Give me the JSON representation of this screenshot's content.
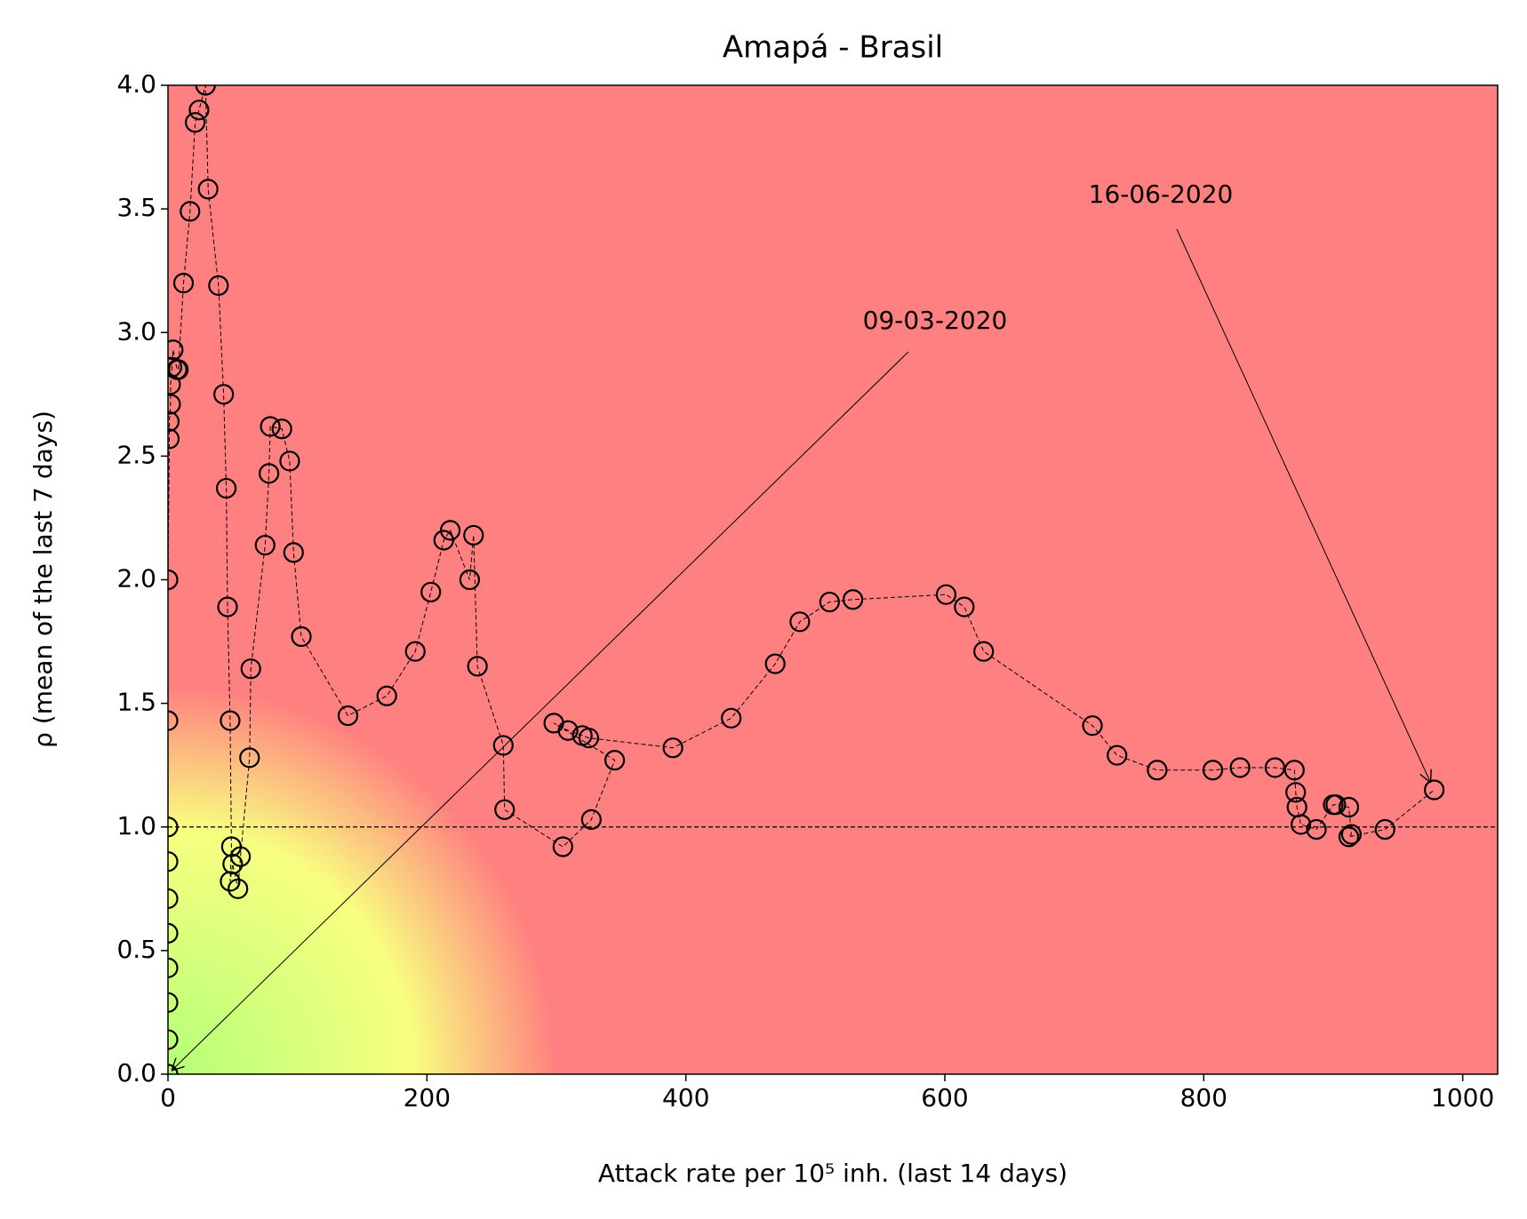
{
  "chart_data": {
    "type": "line",
    "title": "Amapá - Brasil",
    "x_label": "Attack rate per 10⁵ inh. (last 14 days)",
    "y_label": "ρ (mean of the last 7 days)",
    "xlim": [
      0,
      1027
    ],
    "ylim": [
      0,
      4
    ],
    "xticks": [
      0,
      200,
      400,
      600,
      800,
      1000
    ],
    "yticks": [
      {
        "value": 0,
        "label": "0.0"
      },
      0.5,
      {
        "value": 1,
        "label": "1.0"
      },
      1.5,
      {
        "value": 2,
        "label": "2.0"
      },
      2.5,
      {
        "value": 3,
        "label": "3.0"
      },
      3.5,
      {
        "value": 4,
        "label": "4.0"
      }
    ],
    "hline": 1,
    "x": [
      0,
      0,
      0,
      0,
      0,
      0,
      0,
      0,
      0,
      0,
      1,
      1,
      2,
      2,
      3,
      4,
      7,
      8,
      12,
      17,
      21,
      24,
      29,
      31,
      39,
      43,
      45,
      46,
      48,
      49,
      48,
      50,
      54,
      56,
      63,
      64,
      75,
      78,
      79,
      88,
      94,
      97,
      103,
      139,
      169,
      191,
      203,
      213,
      218,
      233,
      236,
      239,
      259,
      260,
      305,
      327,
      345,
      298,
      309,
      320,
      325,
      390,
      435,
      469,
      488,
      511,
      529,
      601,
      615,
      630,
      714,
      733,
      764,
      807,
      828,
      855,
      870,
      871,
      872,
      875,
      887,
      900,
      902,
      912,
      914,
      912,
      940,
      978
    ],
    "series": [
      {
        "name": "ρ",
        "color": "#000000",
        "values": [
          0,
          0.14,
          0.29,
          0.43,
          0.57,
          0.71,
          0.86,
          1.0,
          1.43,
          2.0,
          2.57,
          2.64,
          2.71,
          2.79,
          2.86,
          2.93,
          2.85,
          2.85,
          3.2,
          3.49,
          3.85,
          3.9,
          4.0,
          3.58,
          3.19,
          2.75,
          2.37,
          1.89,
          1.43,
          0.92,
          0.78,
          0.85,
          0.75,
          0.88,
          1.28,
          1.64,
          2.14,
          2.43,
          2.62,
          2.61,
          2.48,
          2.11,
          1.77,
          1.45,
          1.53,
          1.71,
          1.95,
          2.16,
          2.2,
          2.0,
          2.18,
          1.65,
          1.33,
          1.07,
          0.92,
          1.03,
          1.27,
          1.42,
          1.39,
          1.37,
          1.36,
          1.32,
          1.44,
          1.66,
          1.83,
          1.91,
          1.92,
          1.94,
          1.89,
          1.71,
          1.41,
          1.29,
          1.23,
          1.23,
          1.24,
          1.24,
          1.23,
          1.14,
          1.08,
          1.01,
          0.99,
          1.09,
          1.09,
          1.08,
          0.97,
          0.96,
          0.99,
          1.15
        ]
      }
    ],
    "annotations": [
      "09-03-2020",
      "16-06-2020"
    ],
    "background_colors": [
      "#b4ff78",
      "#f8ff80",
      "#ff8080"
    ]
  }
}
